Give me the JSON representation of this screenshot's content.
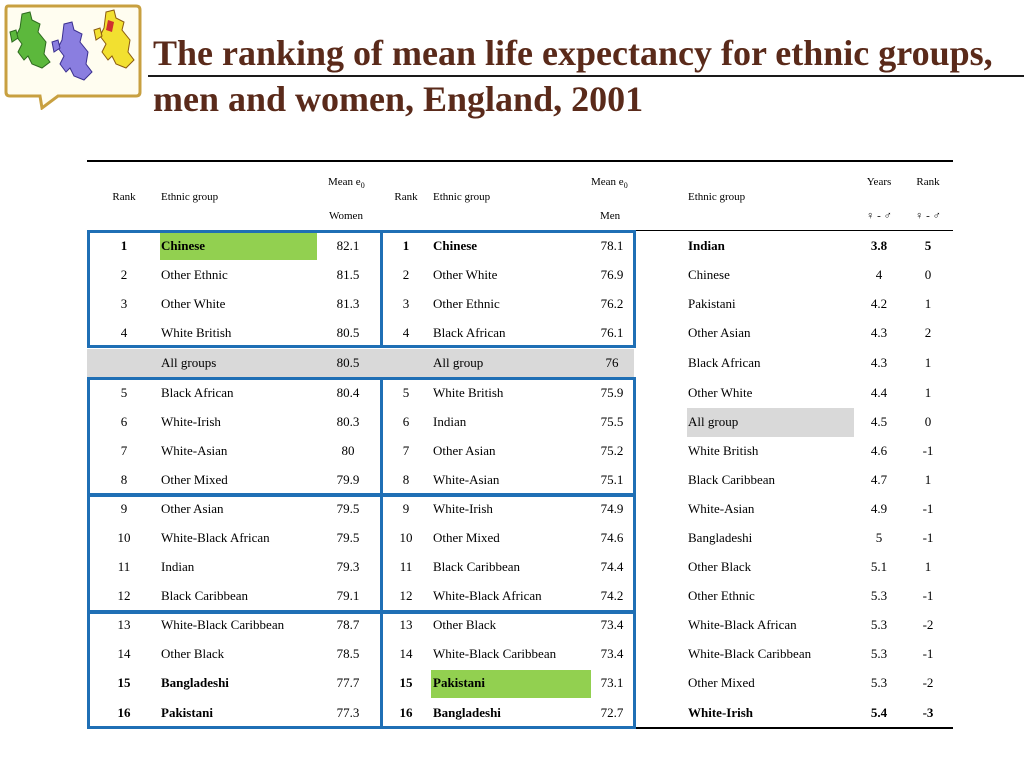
{
  "title": "The ranking of mean life expectancy for ethnic groups, men and women, England, 2001",
  "logo_icon": "uk-maps-logo-icon",
  "colors": {
    "title": "#5a2a1a",
    "box": "#1f6fb5",
    "green": "#92d050",
    "grey": "#d9d9d9"
  },
  "headers": {
    "rank_w": "Rank",
    "group_w": "Ethnic group",
    "mean_w_top": "Mean e",
    "mean_w_sub": "0",
    "mean_w_bottom": "Women",
    "rank_m": "Rank",
    "group_m": "Ethnic group",
    "mean_m_top": "Mean e",
    "mean_m_sub": "0",
    "mean_m_bottom": "Men",
    "group_d": "Ethnic group",
    "years_top": "Years",
    "years_bottom": "♀ - ♂",
    "rank_d_top": "Rank",
    "rank_d_bottom": "♀ - ♂"
  },
  "rows": [
    {
      "rw": "1",
      "gw": "Chinese",
      "vw": "82.1",
      "rm": "1",
      "gm": "Chinese",
      "vm": "78.1",
      "gd": "Indian",
      "yd": "3.8",
      "rd": "5"
    },
    {
      "rw": "2",
      "gw": "Other Ethnic",
      "vw": "81.5",
      "rm": "2",
      "gm": "Other White",
      "vm": "76.9",
      "gd": "Chinese",
      "yd": "4",
      "rd": "0"
    },
    {
      "rw": "3",
      "gw": "Other White",
      "vw": "81.3",
      "rm": "3",
      "gm": "Other Ethnic",
      "vm": "76.2",
      "gd": "Pakistani",
      "yd": "4.2",
      "rd": "1"
    },
    {
      "rw": "4",
      "gw": "White British",
      "vw": "80.5",
      "rm": "4",
      "gm": "Black African",
      "vm": "76.1",
      "gd": "Other Asian",
      "yd": "4.3",
      "rd": "2"
    },
    {
      "rw": "",
      "gw": "All groups",
      "vw": "80.5",
      "rm": "",
      "gm": "All group",
      "vm": "76",
      "gd": "Black African",
      "yd": "4.3",
      "rd": "1"
    },
    {
      "rw": "5",
      "gw": "Black African",
      "vw": "80.4",
      "rm": "5",
      "gm": "White British",
      "vm": "75.9",
      "gd": "Other White",
      "yd": "4.4",
      "rd": "1"
    },
    {
      "rw": "6",
      "gw": "White-Irish",
      "vw": "80.3",
      "rm": "6",
      "gm": "Indian",
      "vm": "75.5",
      "gd": "All group",
      "yd": "4.5",
      "rd": "0"
    },
    {
      "rw": "7",
      "gw": "White-Asian",
      "vw": "80",
      "rm": "7",
      "gm": "Other Asian",
      "vm": "75.2",
      "gd": "White British",
      "yd": "4.6",
      "rd": "-1"
    },
    {
      "rw": "8",
      "gw": "Other Mixed",
      "vw": "79.9",
      "rm": "8",
      "gm": "White-Asian",
      "vm": "75.1",
      "gd": "Black Caribbean",
      "yd": "4.7",
      "rd": "1"
    },
    {
      "rw": "9",
      "gw": "Other Asian",
      "vw": "79.5",
      "rm": "9",
      "gm": "White-Irish",
      "vm": "74.9",
      "gd": "White-Asian",
      "yd": "4.9",
      "rd": "-1"
    },
    {
      "rw": "10",
      "gw": "White-Black African",
      "vw": "79.5",
      "rm": "10",
      "gm": "Other Mixed",
      "vm": "74.6",
      "gd": "Bangladeshi",
      "yd": "5",
      "rd": "-1"
    },
    {
      "rw": "11",
      "gw": "Indian",
      "vw": "79.3",
      "rm": "11",
      "gm": "Black Caribbean",
      "vm": "74.4",
      "gd": "Other Black",
      "yd": "5.1",
      "rd": "1"
    },
    {
      "rw": "12",
      "gw": "Black Caribbean",
      "vw": "79.1",
      "rm": "12",
      "gm": "White-Black African",
      "vm": "74.2",
      "gd": "Other Ethnic",
      "yd": "5.3",
      "rd": "-1"
    },
    {
      "rw": "13",
      "gw": "White-Black Caribbean",
      "vw": "78.7",
      "rm": "13",
      "gm": "Other Black",
      "vm": "73.4",
      "gd": "White-Black African",
      "yd": "5.3",
      "rd": "-2"
    },
    {
      "rw": "14",
      "gw": "Other Black",
      "vw": "78.5",
      "rm": "14",
      "gm": "White-Black Caribbean",
      "vm": "73.4",
      "gd": "White-Black Caribbean",
      "yd": "5.3",
      "rd": "-1"
    },
    {
      "rw": "15",
      "gw": "Bangladeshi",
      "vw": "77.7",
      "rm": "15",
      "gm": "Pakistani",
      "vm": "73.1",
      "gd": "Other Mixed",
      "yd": "5.3",
      "rd": "-2"
    },
    {
      "rw": "16",
      "gw": "Pakistani",
      "vw": "77.3",
      "rm": "16",
      "gm": "Bangladeshi",
      "vm": "72.7",
      "gd": "White-Irish",
      "yd": "5.4",
      "rd": "-3"
    }
  ]
}
